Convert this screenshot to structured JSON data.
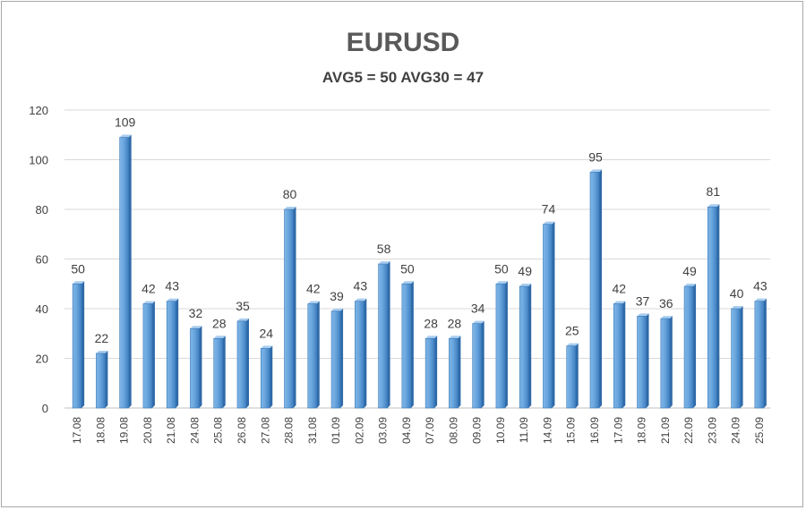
{
  "chart_data": {
    "type": "bar",
    "title": "EURUSD",
    "subtitle": "AVG5 = 50 AVG30 = 47",
    "xlabel": "",
    "ylabel": "",
    "ylim": [
      0,
      120
    ],
    "yticks": [
      0,
      20,
      40,
      60,
      80,
      100,
      120
    ],
    "grid": true,
    "legend": "none",
    "bar_color": "#5b9bd5",
    "categories": [
      "17.08",
      "18.08",
      "19.08",
      "20.08",
      "21.08",
      "24.08",
      "25.08",
      "26.08",
      "27.08",
      "28.08",
      "31.08",
      "01.09",
      "02.09",
      "03.09",
      "04.09",
      "07.09",
      "08.09",
      "09.09",
      "10.09",
      "11.09",
      "14.09",
      "15.09",
      "16.09",
      "17.09",
      "18.09",
      "21.09",
      "22.09",
      "23.09",
      "24.09",
      "25.09"
    ],
    "values": [
      50,
      22,
      109,
      42,
      43,
      32,
      28,
      35,
      24,
      80,
      42,
      39,
      43,
      58,
      50,
      28,
      28,
      34,
      50,
      49,
      74,
      25,
      95,
      42,
      37,
      36,
      49,
      81,
      40,
      43
    ]
  }
}
